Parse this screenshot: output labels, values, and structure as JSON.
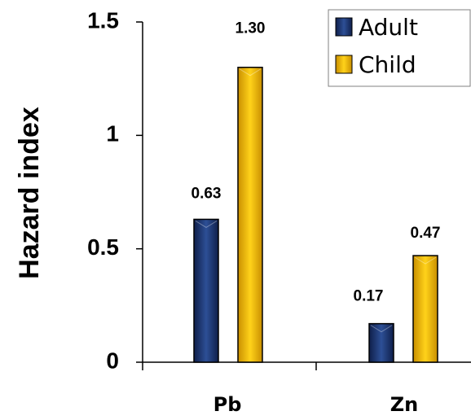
{
  "chart_data": {
    "type": "bar",
    "categories": [
      "Pb",
      "Zn"
    ],
    "series": [
      {
        "name": "Adult",
        "values": [
          0.63,
          0.17
        ],
        "labels": [
          "0.63",
          "0.17"
        ]
      },
      {
        "name": "Child",
        "values": [
          1.3,
          0.47
        ],
        "labels": [
          "1.30",
          "0.47"
        ]
      }
    ],
    "title": "",
    "xlabel": "",
    "ylabel": "Hazard index",
    "ylim": [
      0,
      1.5
    ],
    "yticks": [
      0,
      0.5,
      1,
      1.5
    ],
    "ytick_labels": [
      "0",
      "0.5",
      "1",
      "1.5"
    ],
    "grid": false,
    "legend_position": "top-right",
    "colors": {
      "Adult": "#1f3a78",
      "Child": "#f2b800"
    }
  }
}
